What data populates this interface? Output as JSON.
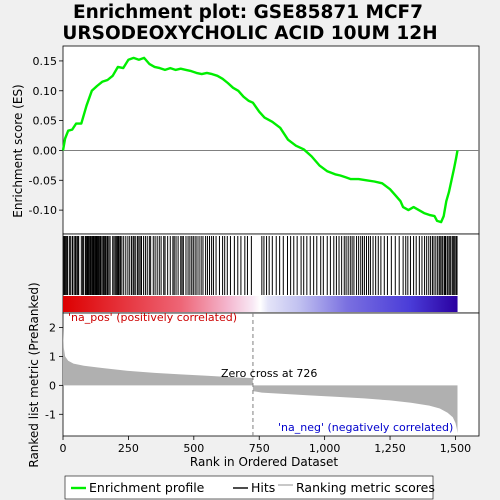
{
  "chart_data": {
    "type": "line",
    "title_line1": "Enrichment plot: GSE85871 MCF7",
    "title_line2": "URSODEOXYCHOLIC ACID 10UM 12H",
    "top_panel": {
      "ylabel": "Enrichment score (ES)",
      "ylim": [
        -0.14,
        0.175
      ],
      "yticks": [
        0.15,
        0.1,
        0.05,
        0.0,
        -0.05,
        -0.1
      ],
      "ytick_labels": [
        "0.15",
        "0.10",
        "0.05",
        "0.00",
        "-0.05",
        "-0.10"
      ],
      "line_color": "#00ee00",
      "series": {
        "name": "Enrichment profile",
        "x": [
          0,
          8,
          20,
          35,
          50,
          70,
          90,
          110,
          130,
          150,
          170,
          190,
          210,
          230,
          250,
          270,
          290,
          310,
          330,
          350,
          370,
          390,
          410,
          430,
          450,
          470,
          490,
          510,
          530,
          550,
          570,
          590,
          610,
          630,
          650,
          670,
          690,
          710,
          726,
          750,
          770,
          800,
          830,
          860,
          890,
          920,
          950,
          980,
          1010,
          1040,
          1060,
          1080,
          1100,
          1130,
          1160,
          1190,
          1220,
          1250,
          1270,
          1290,
          1300,
          1320,
          1340,
          1360,
          1380,
          1400,
          1420,
          1430,
          1445,
          1455,
          1465,
          1475,
          1485,
          1495,
          1503,
          1508
        ],
        "y": [
          0.0,
          0.02,
          0.033,
          0.035,
          0.045,
          0.045,
          0.075,
          0.1,
          0.108,
          0.115,
          0.118,
          0.125,
          0.14,
          0.138,
          0.152,
          0.155,
          0.152,
          0.155,
          0.145,
          0.14,
          0.138,
          0.135,
          0.138,
          0.135,
          0.137,
          0.135,
          0.133,
          0.13,
          0.128,
          0.13,
          0.128,
          0.125,
          0.12,
          0.113,
          0.105,
          0.1,
          0.09,
          0.083,
          0.08,
          0.065,
          0.055,
          0.048,
          0.038,
          0.018,
          0.008,
          0.002,
          -0.01,
          -0.025,
          -0.035,
          -0.04,
          -0.042,
          -0.045,
          -0.048,
          -0.048,
          -0.05,
          -0.052,
          -0.055,
          -0.065,
          -0.075,
          -0.085,
          -0.095,
          -0.1,
          -0.095,
          -0.1,
          -0.105,
          -0.108,
          -0.11,
          -0.118,
          -0.12,
          -0.11,
          -0.085,
          -0.07,
          -0.05,
          -0.03,
          -0.012,
          0.0
        ]
      }
    },
    "hits_panel": {
      "label": "Hits",
      "hit_positions": [
        3,
        6,
        10,
        14,
        17,
        24,
        28,
        35,
        38,
        45,
        48,
        53,
        57,
        60,
        70,
        75,
        78,
        85,
        88,
        92,
        95,
        98,
        102,
        105,
        108,
        112,
        115,
        118,
        122,
        125,
        128,
        132,
        135,
        138,
        142,
        145,
        150,
        155,
        158,
        162,
        165,
        170,
        175,
        180,
        190,
        195,
        200,
        205,
        208,
        212,
        215,
        220,
        225,
        232,
        240,
        248,
        255,
        262,
        268,
        272,
        278,
        285,
        290,
        295,
        300,
        308,
        315,
        322,
        330,
        335,
        345,
        352,
        360,
        368,
        375,
        385,
        390,
        400,
        410,
        420,
        425,
        432,
        440,
        450,
        455,
        460,
        470,
        478,
        485,
        492,
        498,
        505,
        512,
        520,
        528,
        535,
        545,
        552,
        560,
        568,
        575,
        585,
        598,
        610,
        618,
        628,
        640,
        655,
        668,
        680,
        695,
        705,
        720,
        760,
        768,
        778,
        788,
        800,
        815,
        828,
        842,
        858,
        870,
        882,
        895,
        910,
        920,
        932,
        945,
        958,
        970,
        985,
        995,
        1010,
        1022,
        1035,
        1045,
        1055,
        1065,
        1075,
        1082,
        1090,
        1098,
        1105,
        1112,
        1122,
        1130,
        1138,
        1145,
        1152,
        1160,
        1168,
        1175,
        1185,
        1195,
        1205,
        1215,
        1228,
        1240,
        1255,
        1270,
        1285,
        1300,
        1310,
        1318,
        1328,
        1340,
        1350,
        1362,
        1372,
        1382,
        1390,
        1398,
        1405,
        1412,
        1418,
        1425,
        1432,
        1438,
        1442,
        1448,
        1452,
        1458,
        1462,
        1468,
        1472,
        1478,
        1482,
        1488,
        1492,
        1497,
        1502,
        1506
      ]
    },
    "rank_panel": {
      "ylabel": "Ranked list metric (PreRanked)",
      "xlabel": "Rank in Ordered Dataset",
      "ylim": [
        -1.75,
        2.5
      ],
      "yticks": [
        2,
        1,
        0,
        -1
      ],
      "ytick_labels": [
        "2",
        "1",
        "0",
        "-1"
      ],
      "xticks": [
        0,
        250,
        500,
        750,
        1000,
        1250,
        1500
      ],
      "xtick_labels": [
        "0",
        "250",
        "500",
        "750",
        "1,000",
        "1,250",
        "1,500"
      ],
      "xlim": [
        0,
        1590
      ],
      "n_genes": 1508,
      "zero_cross": 726,
      "zero_cross_label": "Zero cross at 726",
      "pos_label": "'na_pos' (positively correlated)",
      "neg_label": "'na_neg' (negatively correlated)",
      "pos_color": "#cc0000",
      "neg_color": "#0000cc",
      "fill_color": "#b0b0b0",
      "metric_curve": {
        "x": [
          0,
          3,
          8,
          20,
          40,
          80,
          150,
          250,
          350,
          450,
          550,
          650,
          725,
          726,
          760,
          850,
          950,
          1050,
          1150,
          1250,
          1330,
          1400,
          1440,
          1470,
          1490,
          1500,
          1505,
          1508
        ],
        "y": [
          2.0,
          1.3,
          1.0,
          0.85,
          0.75,
          0.68,
          0.6,
          0.5,
          0.43,
          0.38,
          0.33,
          0.28,
          0.25,
          -0.2,
          -0.25,
          -0.3,
          -0.35,
          -0.4,
          -0.45,
          -0.52,
          -0.6,
          -0.7,
          -0.8,
          -0.95,
          -1.1,
          -1.3,
          -1.5,
          -1.65
        ]
      }
    },
    "legend": {
      "items": [
        "Enrichment profile",
        "Hits",
        "Ranking metric scores"
      ],
      "colors": [
        "#00ee00",
        "#000000",
        "#b0b0b0"
      ]
    }
  }
}
